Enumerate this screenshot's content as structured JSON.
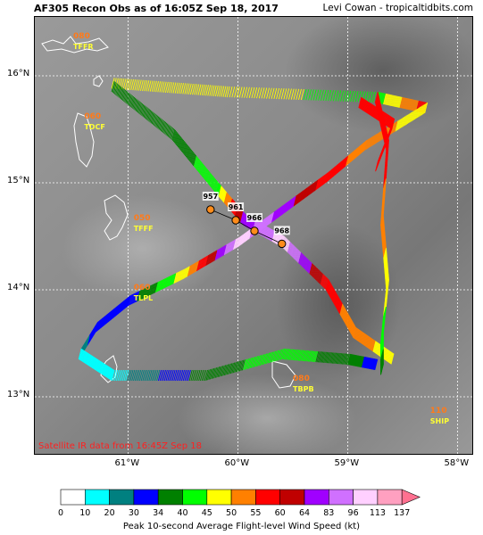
{
  "header": {
    "title": "AF305 Recon Obs as of 16:05Z Sep 18, 2017",
    "credit": "Levi Cowan - tropicaltidbits.com"
  },
  "map": {
    "lat_labels": [
      {
        "text": "16°N",
        "lat": 16
      },
      {
        "text": "15°N",
        "lat": 15
      },
      {
        "text": "14°N",
        "lat": 14
      },
      {
        "text": "13°N",
        "lat": 13
      }
    ],
    "lon_labels": [
      {
        "text": "61°W",
        "lon": -61
      },
      {
        "text": "60°W",
        "lon": -60
      },
      {
        "text": "59°W",
        "lon": -59
      },
      {
        "text": "58°W",
        "lon": -58
      }
    ],
    "stations": [
      {
        "id": "TFFR",
        "value": "080",
        "lon": -61.5,
        "lat": 16.3
      },
      {
        "id": "TDCF",
        "value": "060",
        "lon": -61.4,
        "lat": 15.55
      },
      {
        "id": "TFFF",
        "value": "050",
        "lon": -60.95,
        "lat": 14.6
      },
      {
        "id": "TLPL",
        "value": "060",
        "lon": -60.95,
        "lat": 13.95
      },
      {
        "id": "TBPB",
        "value": "080",
        "lon": -59.5,
        "lat": 13.1
      },
      {
        "id": "SHIP",
        "value": "110",
        "lon": -58.25,
        "lat": 12.8
      }
    ],
    "pressure_obs": [
      {
        "label": "957",
        "lon": -60.25,
        "lat": 14.75
      },
      {
        "label": "961",
        "lon": -60.02,
        "lat": 14.65
      },
      {
        "label": "966",
        "lon": -59.85,
        "lat": 14.55
      },
      {
        "label": "968",
        "lon": -59.6,
        "lat": 14.43
      }
    ],
    "satellite_note": "Satellite IR data from 16:45Z Sep 18"
  },
  "colorbar": {
    "title": "Peak 10-second Average Flight-level Wind Speed (kt)",
    "ticks": [
      "0",
      "10",
      "20",
      "30",
      "34",
      "40",
      "45",
      "50",
      "55",
      "60",
      "64",
      "83",
      "96",
      "113",
      "137"
    ],
    "colors": [
      "#ffffff",
      "#00ffff",
      "#008080",
      "#0000ff",
      "#008000",
      "#00ff00",
      "#ffff00",
      "#ff8000",
      "#ff0000",
      "#c00000",
      "#a000ff",
      "#d070ff",
      "#ffd0ff",
      "#ffa0c0"
    ],
    "extend_color": "#ff7090"
  }
}
